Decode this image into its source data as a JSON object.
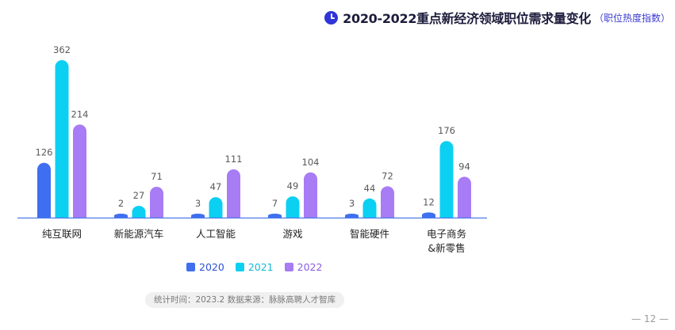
{
  "header": {
    "title": "2020-2022重点新经济领域职位需求量变化",
    "subtitle": "（职位热度指数）",
    "icon": "clock-icon"
  },
  "colors": {
    "s2020": "#3f6ff0",
    "s2021": "#0cd0f2",
    "s2022": "#a77cf5",
    "axis": "#4a78e8"
  },
  "chart_data": {
    "type": "bar",
    "title": "2020-2022重点新经济领域职位需求量变化",
    "subtitle": "（职位热度指数）",
    "categories": [
      [
        "纯互联网"
      ],
      [
        "新能源汽车"
      ],
      [
        "人工智能"
      ],
      [
        "游戏"
      ],
      [
        "智能硬件"
      ],
      [
        "电子商务",
        "&新零售"
      ]
    ],
    "series": [
      {
        "name": "2020",
        "values": [
          126,
          2,
          3,
          7,
          3,
          12
        ]
      },
      {
        "name": "2021",
        "values": [
          362,
          27,
          47,
          49,
          44,
          176
        ]
      },
      {
        "name": "2022",
        "values": [
          214,
          71,
          111,
          104,
          72,
          94
        ]
      }
    ],
    "xlabel": "",
    "ylabel": "",
    "ylim": [
      0,
      362
    ],
    "grid": false,
    "legend_position": "bottom"
  },
  "legend": {
    "items": [
      {
        "label": "2020"
      },
      {
        "label": "2021"
      },
      {
        "label": "2022"
      }
    ]
  },
  "footer": {
    "source": "统计时间：2023.2  数据来源：脉脉高聘人才智库",
    "page": "— 12 —"
  }
}
